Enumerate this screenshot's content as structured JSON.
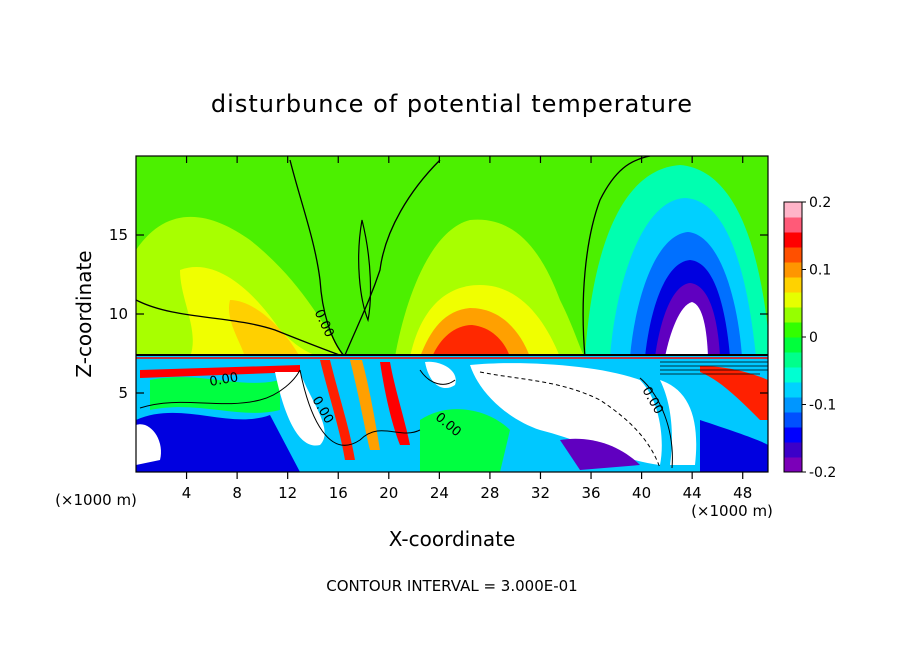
{
  "chart_data": {
    "type": "heatmap",
    "title": "disturbunce of potential temperature",
    "xlabel": "X-coordinate",
    "ylabel": "Z-coordinate",
    "x_unit": "(×1000 m)",
    "x_unit_right": "(×1000 m)",
    "footer": "CONTOUR INTERVAL = 3.000E-01",
    "xlim": [
      0,
      50
    ],
    "ylim": [
      0,
      20
    ],
    "x_ticks": [
      4,
      8,
      12,
      16,
      20,
      24,
      28,
      32,
      36,
      40,
      44,
      48
    ],
    "x_tick_labels": [
      "4",
      "8",
      "12",
      "16",
      "20",
      "24",
      "28",
      "32",
      "36",
      "40",
      "44",
      "48"
    ],
    "y_ticks": [
      5,
      10,
      15
    ],
    "y_tick_labels": [
      "5",
      "10",
      "15"
    ],
    "contour_labels": [
      {
        "text": "0.00",
        "x": 14.6,
        "z": 9.3,
        "rotate": 65
      },
      {
        "text": "0.00",
        "x": 7.0,
        "z": 5.6,
        "rotate": -10
      },
      {
        "text": "0.00",
        "x": 14.5,
        "z": 3.8,
        "rotate": 60
      },
      {
        "text": "0.00",
        "x": 24.5,
        "z": 2.8,
        "rotate": 40
      },
      {
        "text": "0.00",
        "x": 40.6,
        "z": 4.4,
        "rotate": 60
      }
    ],
    "colorbar": {
      "min": -0.2,
      "max": 0.2,
      "tick_labels": [
        "0.2",
        "0.1",
        "0",
        "-0.1",
        "-0.2"
      ],
      "tick_values": [
        0.2,
        0.1,
        0,
        -0.1,
        -0.2
      ],
      "colors": [
        "#7b00b8",
        "#3c00c8",
        "#0000ff",
        "#0050ff",
        "#0096ff",
        "#00d2ff",
        "#00ffd2",
        "#00ff8c",
        "#00ff3c",
        "#32ff00",
        "#96ff00",
        "#e6ff00",
        "#ffd200",
        "#ff9600",
        "#ff5000",
        "#ff0000",
        "#ff5a78",
        "#ffb4c8"
      ]
    }
  }
}
